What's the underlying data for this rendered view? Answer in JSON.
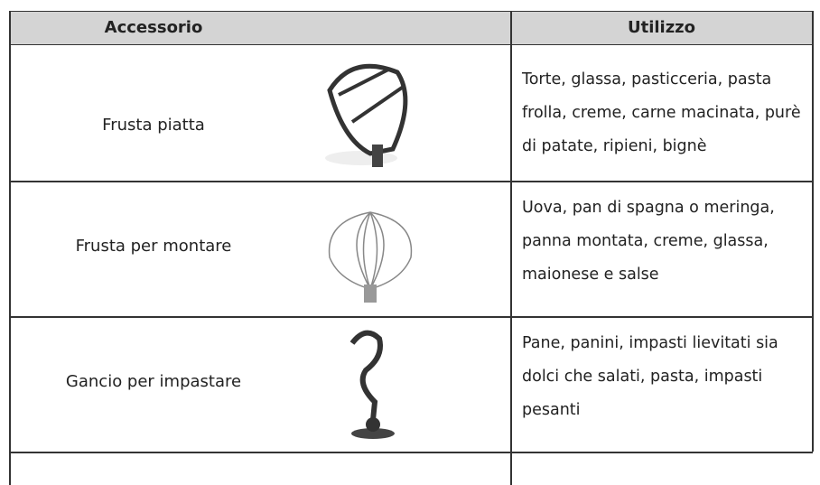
{
  "table": {
    "header": [
      "Accessorio",
      "Utilizzo"
    ],
    "rows": [
      {
        "name": "Frusta piatta",
        "use": "Torte, glassa, pasticceria, pasta frolla, creme, carne macinata, purè di patate, ripieni, bignè"
      },
      {
        "name": "Frusta per montare",
        "use": "Uova, pan di spagna o meringa, panna montata, creme, glassa, maionese e salse"
      },
      {
        "name": "Gancio per impastare",
        "use": "Pane, panini, impasti lievitati sia dolci che salati, pasta, impasti pesanti"
      }
    ]
  }
}
